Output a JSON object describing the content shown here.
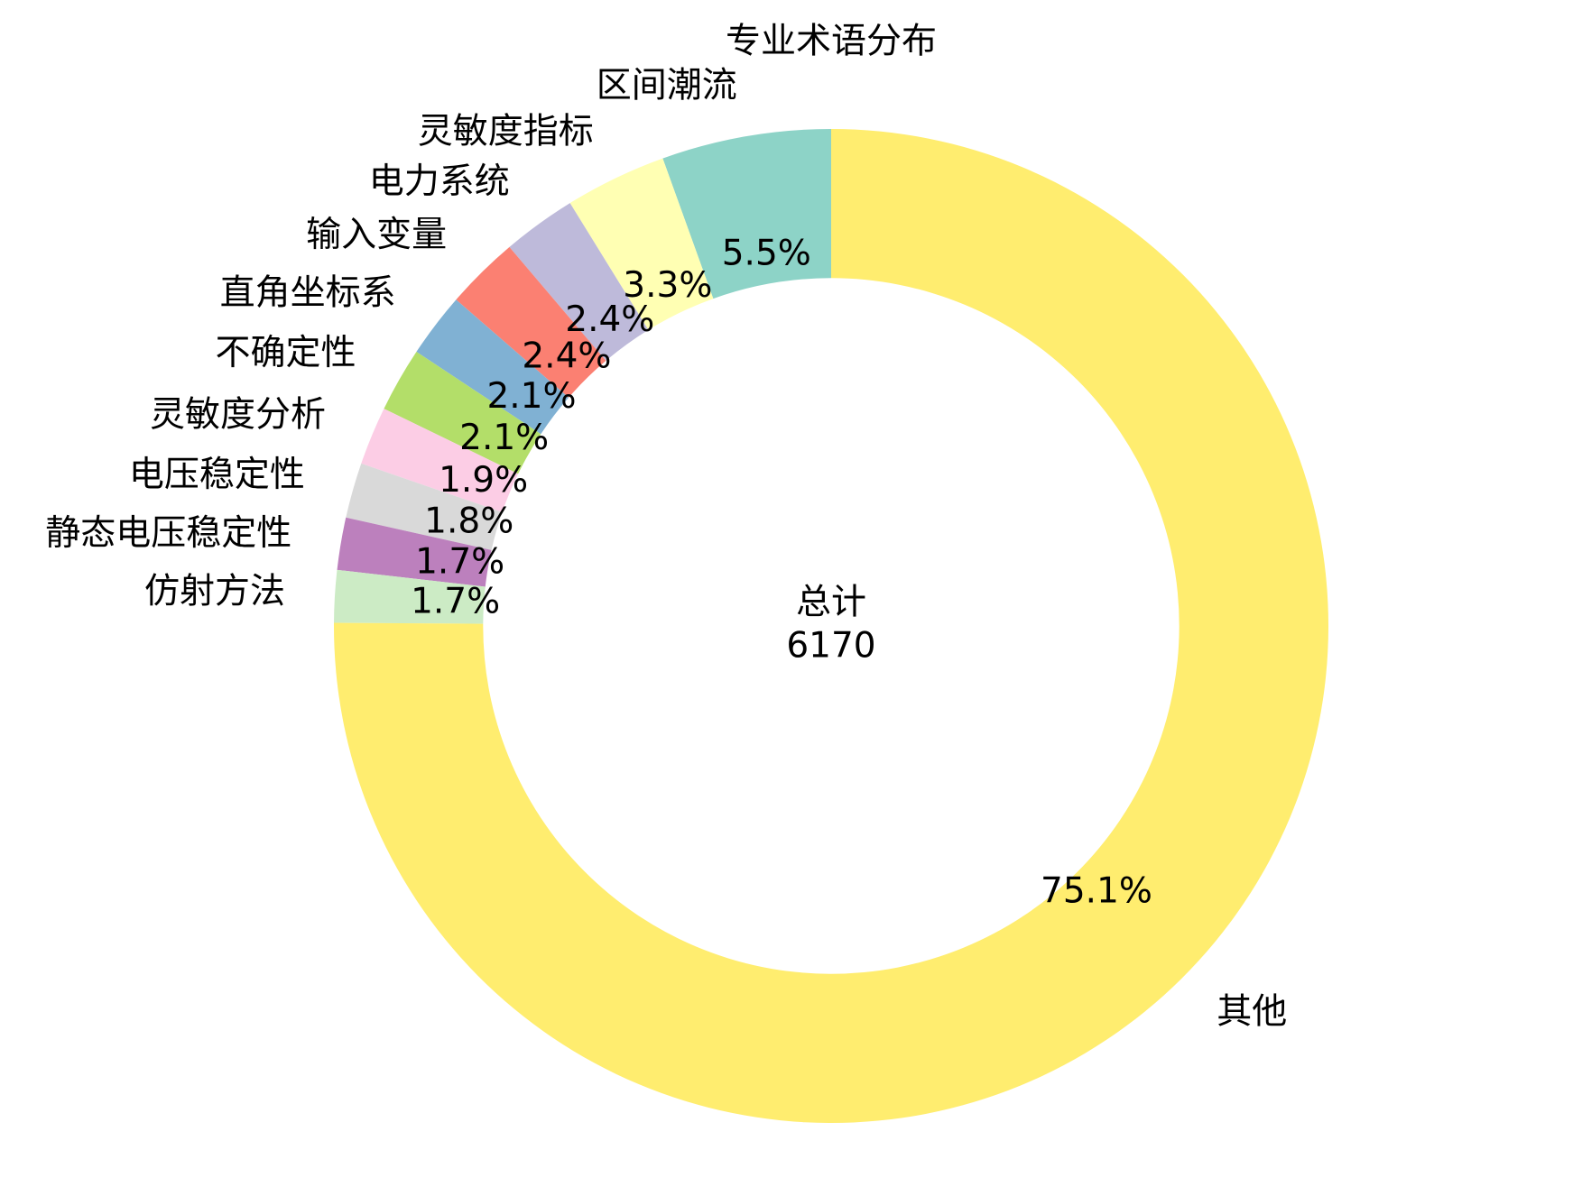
{
  "chart_data": {
    "type": "donut",
    "title": "专业术语分布",
    "categories": [
      "区间潮流",
      "灵敏度指标",
      "电力系统",
      "输入变量",
      "直角坐标系",
      "不确定性",
      "灵敏度分析",
      "电压稳定性",
      "静态电压稳定性",
      "仿射方法",
      "其他"
    ],
    "values": [
      5.5,
      3.3,
      2.4,
      2.4,
      2.1,
      2.1,
      1.9,
      1.8,
      1.7,
      1.7,
      75.1
    ],
    "value_labels": [
      "5.5%",
      "3.3%",
      "2.4%",
      "2.4%",
      "2.1%",
      "2.1%",
      "1.9%",
      "1.8%",
      "1.7%",
      "1.7%",
      "75.1%"
    ],
    "colors": [
      "#8dd3c7",
      "#ffffb3",
      "#bebada",
      "#fb8072",
      "#80b1d3",
      "#b3de69",
      "#fccde5",
      "#d9d9d9",
      "#bc80bd",
      "#ccebc5",
      "#ffed6f"
    ],
    "center_label": "总计",
    "total": 6170
  }
}
